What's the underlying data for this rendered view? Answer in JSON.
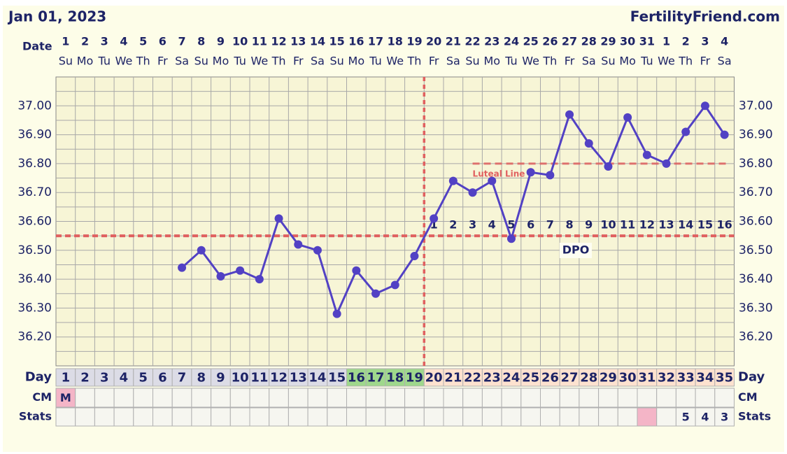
{
  "header": {
    "date": "Jan 01, 2023",
    "site": "FertilityFriend.com"
  },
  "chart_data": {
    "type": "line",
    "row_labels": {
      "date": "Date",
      "day": "Day",
      "cm": "CM",
      "stats": "Stats"
    },
    "dates": [
      1,
      2,
      3,
      4,
      5,
      6,
      7,
      8,
      9,
      10,
      11,
      12,
      13,
      14,
      15,
      16,
      17,
      18,
      19,
      20,
      21,
      22,
      23,
      24,
      25,
      26,
      27,
      28,
      29,
      30,
      31,
      1,
      2,
      3,
      4
    ],
    "weekdays": [
      "Su",
      "Mo",
      "Tu",
      "We",
      "Th",
      "Fr",
      "Sa",
      "Su",
      "Mo",
      "Tu",
      "We",
      "Th",
      "Fr",
      "Sa",
      "Su",
      "Mo",
      "Tu",
      "We",
      "Th",
      "Fr",
      "Sa",
      "Su",
      "Mo",
      "Tu",
      "We",
      "Th",
      "Fr",
      "Sa",
      "Su",
      "Mo",
      "Tu",
      "We",
      "Th",
      "Fr",
      "Sa"
    ],
    "categories": [
      1,
      2,
      3,
      4,
      5,
      6,
      7,
      8,
      9,
      10,
      11,
      12,
      13,
      14,
      15,
      16,
      17,
      18,
      19,
      20,
      21,
      22,
      23,
      24,
      25,
      26,
      27,
      28,
      29,
      30,
      31,
      32,
      33,
      34,
      35
    ],
    "day_colors": [
      "#dcdce6",
      "#dcdce6",
      "#dcdce6",
      "#dcdce6",
      "#dcdce6",
      "#dcdce6",
      "#dcdce6",
      "#dcdce6",
      "#dcdce6",
      "#dcdce6",
      "#dcdce6",
      "#dcdce6",
      "#dcdce6",
      "#dcdce6",
      "#dcdce6",
      "#9fd88c",
      "#9fd88c",
      "#9fd88c",
      "#9fd88c",
      "#fde2cf",
      "#fde2cf",
      "#fde2cf",
      "#fde2cf",
      "#fde2cf",
      "#fde2cf",
      "#fde2cf",
      "#fde2cf",
      "#fde2cf",
      "#fde2cf",
      "#fde2cf",
      "#fde2cf",
      "#fde2cf",
      "#fde2cf",
      "#fde2cf",
      "#fde2cf"
    ],
    "values": [
      null,
      null,
      null,
      null,
      null,
      null,
      36.44,
      36.5,
      36.41,
      36.43,
      36.4,
      36.61,
      36.52,
      36.5,
      36.28,
      36.43,
      36.35,
      36.38,
      36.48,
      36.61,
      36.74,
      36.7,
      36.74,
      36.54,
      36.77,
      36.76,
      36.97,
      36.87,
      36.79,
      36.96,
      36.83,
      36.8,
      36.91,
      37.0,
      36.9
    ],
    "color": "#5241c4",
    "ylim": [
      36.1,
      37.1
    ],
    "yticks": [
      {
        "value": 36.2,
        "label": "36.20"
      },
      {
        "value": 36.3,
        "label": "36.30"
      },
      {
        "value": 36.4,
        "label": "36.40"
      },
      {
        "value": 36.5,
        "label": "36.50"
      },
      {
        "value": 36.6,
        "label": "36.60"
      },
      {
        "value": 36.7,
        "label": "36.70"
      },
      {
        "value": 36.8,
        "label": "36.80"
      },
      {
        "value": 36.9,
        "label": "36.90"
      },
      {
        "value": 37.0,
        "label": "37.00"
      }
    ],
    "y_minor_ticks": [
      36.15,
      36.25,
      36.35,
      36.45,
      36.55,
      36.65,
      36.75,
      36.85,
      36.95,
      37.05
    ],
    "grid": true,
    "coverline": 36.55,
    "ovulation_day": 19,
    "luteal_line": {
      "value": 36.8,
      "from_day": 22,
      "label": "Luteal Line"
    },
    "line_color": "#e06060",
    "dpo": [
      null,
      null,
      null,
      null,
      null,
      null,
      null,
      null,
      null,
      null,
      null,
      null,
      null,
      null,
      null,
      null,
      null,
      null,
      null,
      1,
      2,
      3,
      4,
      5,
      6,
      7,
      8,
      9,
      10,
      11,
      12,
      13,
      14,
      15,
      16
    ],
    "dpo_label": "DPO",
    "cm": [
      "M",
      null,
      null,
      null,
      null,
      null,
      null,
      null,
      null,
      null,
      null,
      null,
      null,
      null,
      null,
      null,
      null,
      null,
      null,
      null,
      null,
      null,
      null,
      null,
      null,
      null,
      null,
      null,
      null,
      null,
      null,
      null,
      null,
      null,
      null
    ],
    "stats": [
      null,
      null,
      null,
      null,
      null,
      null,
      null,
      null,
      null,
      null,
      null,
      null,
      null,
      null,
      null,
      null,
      null,
      null,
      null,
      null,
      null,
      null,
      null,
      null,
      null,
      null,
      null,
      null,
      null,
      null,
      null,
      null,
      5,
      4,
      3
    ],
    "cm_highlight_days": [
      1
    ],
    "stats_highlight_days": [
      31
    ],
    "highlight_color": "#f4b5c7"
  }
}
